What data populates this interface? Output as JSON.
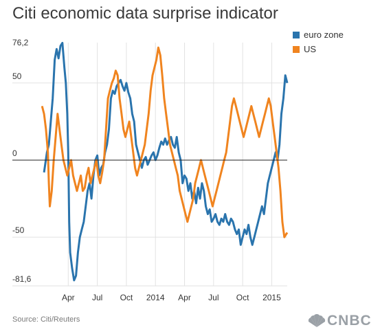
{
  "title": "Citi economic data surprise indicator",
  "source": "Source: Citi/Reuters",
  "logo": {
    "text": "CNBC",
    "icon": "peacock-icon",
    "color": "#9aa0a6"
  },
  "chart_data": {
    "type": "line",
    "title": "Citi economic data surprise indicator",
    "ylim": [
      -81.6,
      76.2
    ],
    "y_ticks": [
      {
        "value": 76.2,
        "label": "76,2"
      },
      {
        "value": 50,
        "label": "50"
      },
      {
        "value": 0,
        "label": "0"
      },
      {
        "value": -50,
        "label": "-50"
      },
      {
        "value": -81.6,
        "label": "-81,6"
      }
    ],
    "x_ticks": [
      {
        "t": 3,
        "label": "Apr"
      },
      {
        "t": 6,
        "label": "Jul"
      },
      {
        "t": 9,
        "label": "Oct"
      },
      {
        "t": 12,
        "label": "2014"
      },
      {
        "t": 15,
        "label": "Apr"
      },
      {
        "t": 18,
        "label": "Jul"
      },
      {
        "t": 21,
        "label": "Oct"
      },
      {
        "t": 24,
        "label": "2015"
      }
    ],
    "x_range": [
      0,
      25.6
    ],
    "grid": "vertical at x ticks, horizontal at 50 and -50, zero line emphasized",
    "legend_position": "top-right",
    "series": [
      {
        "name": "euro zone",
        "color": "#2a74ad",
        "points": [
          [
            0.5,
            -8
          ],
          [
            0.8,
            5
          ],
          [
            1.0,
            10
          ],
          [
            1.2,
            25
          ],
          [
            1.4,
            40
          ],
          [
            1.6,
            65
          ],
          [
            1.8,
            72
          ],
          [
            2.0,
            66
          ],
          [
            2.2,
            74
          ],
          [
            2.4,
            76
          ],
          [
            2.6,
            60
          ],
          [
            2.75,
            50
          ],
          [
            2.9,
            30
          ],
          [
            3.0,
            5
          ],
          [
            3.1,
            -40
          ],
          [
            3.2,
            -60
          ],
          [
            3.4,
            -70
          ],
          [
            3.6,
            -78
          ],
          [
            3.8,
            -75
          ],
          [
            4.0,
            -60
          ],
          [
            4.2,
            -50
          ],
          [
            4.4,
            -45
          ],
          [
            4.6,
            -40
          ],
          [
            4.8,
            -30
          ],
          [
            5.0,
            -20
          ],
          [
            5.2,
            -15
          ],
          [
            5.4,
            -25
          ],
          [
            5.6,
            -10
          ],
          [
            5.8,
            0
          ],
          [
            6.0,
            3
          ],
          [
            6.2,
            -10
          ],
          [
            6.4,
            -5
          ],
          [
            6.6,
            -3
          ],
          [
            6.8,
            5
          ],
          [
            7.0,
            10
          ],
          [
            7.2,
            20
          ],
          [
            7.4,
            40
          ],
          [
            7.6,
            45
          ],
          [
            7.8,
            43
          ],
          [
            8.0,
            48
          ],
          [
            8.2,
            50
          ],
          [
            8.4,
            52
          ],
          [
            8.6,
            48
          ],
          [
            8.8,
            45
          ],
          [
            9.0,
            50
          ],
          [
            9.2,
            44
          ],
          [
            9.4,
            40
          ],
          [
            9.6,
            30
          ],
          [
            9.8,
            25
          ],
          [
            10.0,
            10
          ],
          [
            10.2,
            5
          ],
          [
            10.4,
            0
          ],
          [
            10.6,
            -5
          ],
          [
            10.8,
            0
          ],
          [
            11.0,
            2
          ],
          [
            11.2,
            -3
          ],
          [
            11.4,
            0
          ],
          [
            11.6,
            3
          ],
          [
            11.8,
            5
          ],
          [
            12.0,
            0
          ],
          [
            12.2,
            3
          ],
          [
            12.4,
            8
          ],
          [
            12.6,
            12
          ],
          [
            12.8,
            10
          ],
          [
            13.0,
            14
          ],
          [
            13.2,
            10
          ],
          [
            13.4,
            13
          ],
          [
            13.6,
            15
          ],
          [
            13.8,
            10
          ],
          [
            14.0,
            8
          ],
          [
            14.2,
            15
          ],
          [
            14.4,
            5
          ],
          [
            14.6,
            0
          ],
          [
            14.8,
            -15
          ],
          [
            15.0,
            -10
          ],
          [
            15.2,
            -12
          ],
          [
            15.4,
            -20
          ],
          [
            15.6,
            -15
          ],
          [
            15.8,
            -25
          ],
          [
            16.0,
            -20
          ],
          [
            16.2,
            -28
          ],
          [
            16.4,
            -18
          ],
          [
            16.6,
            -25
          ],
          [
            16.8,
            -15
          ],
          [
            17.0,
            -20
          ],
          [
            17.2,
            -30
          ],
          [
            17.4,
            -35
          ],
          [
            17.6,
            -32
          ],
          [
            17.8,
            -40
          ],
          [
            18.0,
            -38
          ],
          [
            18.2,
            -35
          ],
          [
            18.4,
            -40
          ],
          [
            18.6,
            -42
          ],
          [
            18.8,
            -38
          ],
          [
            19.0,
            -40
          ],
          [
            19.2,
            -35
          ],
          [
            19.4,
            -40
          ],
          [
            19.6,
            -42
          ],
          [
            19.8,
            -38
          ],
          [
            20.0,
            -40
          ],
          [
            20.2,
            -45
          ],
          [
            20.4,
            -48
          ],
          [
            20.6,
            -45
          ],
          [
            20.8,
            -55
          ],
          [
            21.0,
            -50
          ],
          [
            21.2,
            -45
          ],
          [
            21.4,
            -48
          ],
          [
            21.6,
            -42
          ],
          [
            21.8,
            -50
          ],
          [
            22.0,
            -55
          ],
          [
            22.2,
            -50
          ],
          [
            22.4,
            -45
          ],
          [
            22.6,
            -40
          ],
          [
            22.8,
            -35
          ],
          [
            23.0,
            -30
          ],
          [
            23.2,
            -35
          ],
          [
            23.4,
            -25
          ],
          [
            23.6,
            -15
          ],
          [
            23.8,
            -10
          ],
          [
            24.0,
            -5
          ],
          [
            24.2,
            0
          ],
          [
            24.4,
            5
          ],
          [
            24.6,
            0
          ],
          [
            24.8,
            10
          ],
          [
            25.0,
            30
          ],
          [
            25.2,
            40
          ],
          [
            25.4,
            55
          ],
          [
            25.6,
            50
          ]
        ]
      },
      {
        "name": "US",
        "color": "#f0841f",
        "points": [
          [
            0.3,
            35
          ],
          [
            0.5,
            30
          ],
          [
            0.7,
            20
          ],
          [
            0.9,
            5
          ],
          [
            1.0,
            -15
          ],
          [
            1.1,
            -30
          ],
          [
            1.3,
            -20
          ],
          [
            1.5,
            0
          ],
          [
            1.7,
            15
          ],
          [
            1.9,
            30
          ],
          [
            2.1,
            20
          ],
          [
            2.3,
            10
          ],
          [
            2.5,
            0
          ],
          [
            2.7,
            -5
          ],
          [
            2.9,
            -10
          ],
          [
            3.1,
            -5
          ],
          [
            3.3,
            0
          ],
          [
            3.5,
            -10
          ],
          [
            3.7,
            -15
          ],
          [
            3.9,
            -20
          ],
          [
            4.1,
            -15
          ],
          [
            4.3,
            -10
          ],
          [
            4.5,
            -20
          ],
          [
            4.7,
            -18
          ],
          [
            4.9,
            -10
          ],
          [
            5.1,
            -5
          ],
          [
            5.3,
            -15
          ],
          [
            5.5,
            -10
          ],
          [
            5.7,
            -5
          ],
          [
            5.9,
            0
          ],
          [
            6.1,
            -10
          ],
          [
            6.3,
            -15
          ],
          [
            6.5,
            -8
          ],
          [
            6.7,
            0
          ],
          [
            6.9,
            20
          ],
          [
            7.1,
            40
          ],
          [
            7.3,
            45
          ],
          [
            7.5,
            50
          ],
          [
            7.7,
            53
          ],
          [
            7.9,
            58
          ],
          [
            8.1,
            55
          ],
          [
            8.3,
            40
          ],
          [
            8.5,
            30
          ],
          [
            8.7,
            20
          ],
          [
            8.9,
            15
          ],
          [
            9.1,
            20
          ],
          [
            9.3,
            25
          ],
          [
            9.5,
            15
          ],
          [
            9.7,
            5
          ],
          [
            9.9,
            -5
          ],
          [
            10.1,
            -10
          ],
          [
            10.3,
            -5
          ],
          [
            10.5,
            0
          ],
          [
            10.7,
            5
          ],
          [
            10.9,
            10
          ],
          [
            11.1,
            20
          ],
          [
            11.3,
            30
          ],
          [
            11.5,
            45
          ],
          [
            11.7,
            55
          ],
          [
            11.9,
            60
          ],
          [
            12.1,
            65
          ],
          [
            12.3,
            73
          ],
          [
            12.5,
            68
          ],
          [
            12.7,
            55
          ],
          [
            12.9,
            40
          ],
          [
            13.1,
            30
          ],
          [
            13.3,
            20
          ],
          [
            13.5,
            10
          ],
          [
            13.7,
            5
          ],
          [
            13.9,
            0
          ],
          [
            14.1,
            -5
          ],
          [
            14.3,
            -10
          ],
          [
            14.5,
            -20
          ],
          [
            14.7,
            -25
          ],
          [
            14.9,
            -30
          ],
          [
            15.1,
            -35
          ],
          [
            15.3,
            -40
          ],
          [
            15.5,
            -35
          ],
          [
            15.7,
            -30
          ],
          [
            15.9,
            -25
          ],
          [
            16.1,
            -15
          ],
          [
            16.3,
            -10
          ],
          [
            16.5,
            -5
          ],
          [
            16.7,
            0
          ],
          [
            16.9,
            -5
          ],
          [
            17.1,
            -10
          ],
          [
            17.3,
            -15
          ],
          [
            17.5,
            -20
          ],
          [
            17.7,
            -25
          ],
          [
            17.9,
            -30
          ],
          [
            18.1,
            -25
          ],
          [
            18.3,
            -20
          ],
          [
            18.5,
            -15
          ],
          [
            18.7,
            -10
          ],
          [
            18.9,
            -5
          ],
          [
            19.1,
            0
          ],
          [
            19.3,
            5
          ],
          [
            19.5,
            15
          ],
          [
            19.7,
            25
          ],
          [
            19.9,
            35
          ],
          [
            20.1,
            40
          ],
          [
            20.3,
            35
          ],
          [
            20.5,
            30
          ],
          [
            20.7,
            25
          ],
          [
            20.9,
            20
          ],
          [
            21.1,
            15
          ],
          [
            21.3,
            20
          ],
          [
            21.5,
            25
          ],
          [
            21.7,
            30
          ],
          [
            21.9,
            35
          ],
          [
            22.1,
            30
          ],
          [
            22.3,
            25
          ],
          [
            22.5,
            20
          ],
          [
            22.7,
            15
          ],
          [
            22.9,
            20
          ],
          [
            23.1,
            25
          ],
          [
            23.3,
            30
          ],
          [
            23.5,
            35
          ],
          [
            23.7,
            40
          ],
          [
            23.9,
            35
          ],
          [
            24.1,
            25
          ],
          [
            24.3,
            15
          ],
          [
            24.5,
            5
          ],
          [
            24.7,
            -5
          ],
          [
            24.9,
            -20
          ],
          [
            25.1,
            -40
          ],
          [
            25.3,
            -50
          ],
          [
            25.5,
            -48
          ],
          [
            25.6,
            -47
          ]
        ]
      }
    ]
  }
}
